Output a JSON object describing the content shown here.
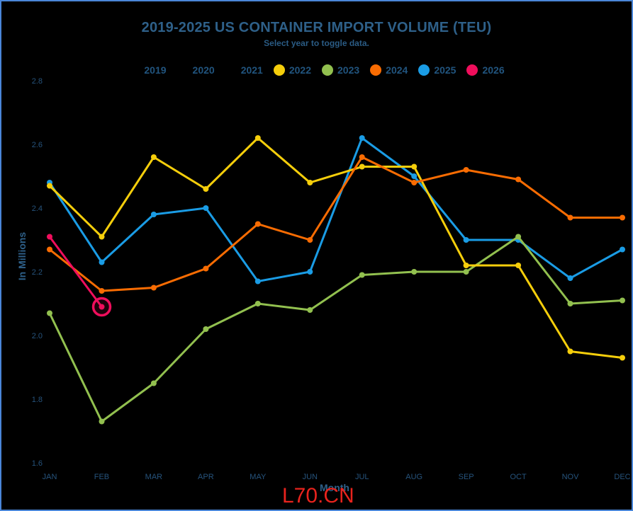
{
  "header": {
    "title": "2019-2025 US CONTAINER IMPORT VOLUME (TEU)",
    "subtitle": "Select year to toggle data."
  },
  "legend": {
    "items": [
      {
        "label": "2019",
        "color": null,
        "active": false
      },
      {
        "label": "2020",
        "color": null,
        "active": false
      },
      {
        "label": "2021",
        "color": null,
        "active": false
      },
      {
        "label": "2022",
        "color": "#F5CE0B",
        "active": true
      },
      {
        "label": "2023",
        "color": "#92C04F",
        "active": true
      },
      {
        "label": "2024",
        "color": "#F96C02",
        "active": true
      },
      {
        "label": "2025",
        "color": "#1A9CE5",
        "active": true
      },
      {
        "label": "2026",
        "color": "#F00E5C",
        "active": true
      }
    ]
  },
  "watermark": {
    "text": "L70.CN",
    "color": "#E8231D"
  },
  "colors": {
    "background": "#000000",
    "border": "#4A86D8",
    "title": "#2E6089",
    "subtitle": "#2A5B84",
    "axis_label": "#2E6089",
    "tick_label": "#26537C",
    "legend_label": "#21547E",
    "watermark": "#E8231D"
  },
  "chart_data": {
    "type": "line",
    "title": "2019-2025 US CONTAINER IMPORT VOLUME (TEU)",
    "subtitle": "Select year to toggle data.",
    "x": [
      "JAN",
      "FEB",
      "MAR",
      "APR",
      "MAY",
      "JUN",
      "JUL",
      "AUG",
      "SEP",
      "OCT",
      "NOV",
      "DEC"
    ],
    "xlabel": "Month",
    "ylabel": "In Millions",
    "ylim": [
      1.6,
      2.8
    ],
    "yticks": [
      1.6,
      1.8,
      2.0,
      2.2,
      2.4,
      2.6,
      2.8
    ],
    "grid": false,
    "legend_position": "top",
    "hidden_series": [
      "2019",
      "2020",
      "2021"
    ],
    "series": [
      {
        "name": "2025",
        "color": "#1A9CE5",
        "values": [
          2.48,
          2.23,
          2.38,
          2.4,
          2.17,
          2.2,
          2.62,
          2.5,
          2.3,
          2.3,
          2.18,
          2.27
        ]
      },
      {
        "name": "2023",
        "color": "#92C04F",
        "values": [
          2.07,
          1.73,
          1.85,
          2.02,
          2.1,
          2.08,
          2.19,
          2.2,
          2.2,
          2.31,
          2.1,
          2.11
        ]
      },
      {
        "name": "2022",
        "color": "#F5CE0B",
        "values": [
          2.47,
          2.31,
          2.56,
          2.46,
          2.62,
          2.48,
          2.53,
          2.53,
          2.22,
          2.22,
          1.95,
          1.93
        ]
      },
      {
        "name": "2024",
        "color": "#F96C02",
        "values": [
          2.27,
          2.14,
          2.15,
          2.21,
          2.35,
          2.3,
          2.56,
          2.48,
          2.52,
          2.49,
          2.37,
          2.37
        ]
      },
      {
        "name": "2026",
        "color": "#F00E5C",
        "highlight_last": true,
        "values": [
          2.31,
          2.09,
          null,
          null,
          null,
          null,
          null,
          null,
          null,
          null,
          null,
          null
        ]
      }
    ]
  }
}
